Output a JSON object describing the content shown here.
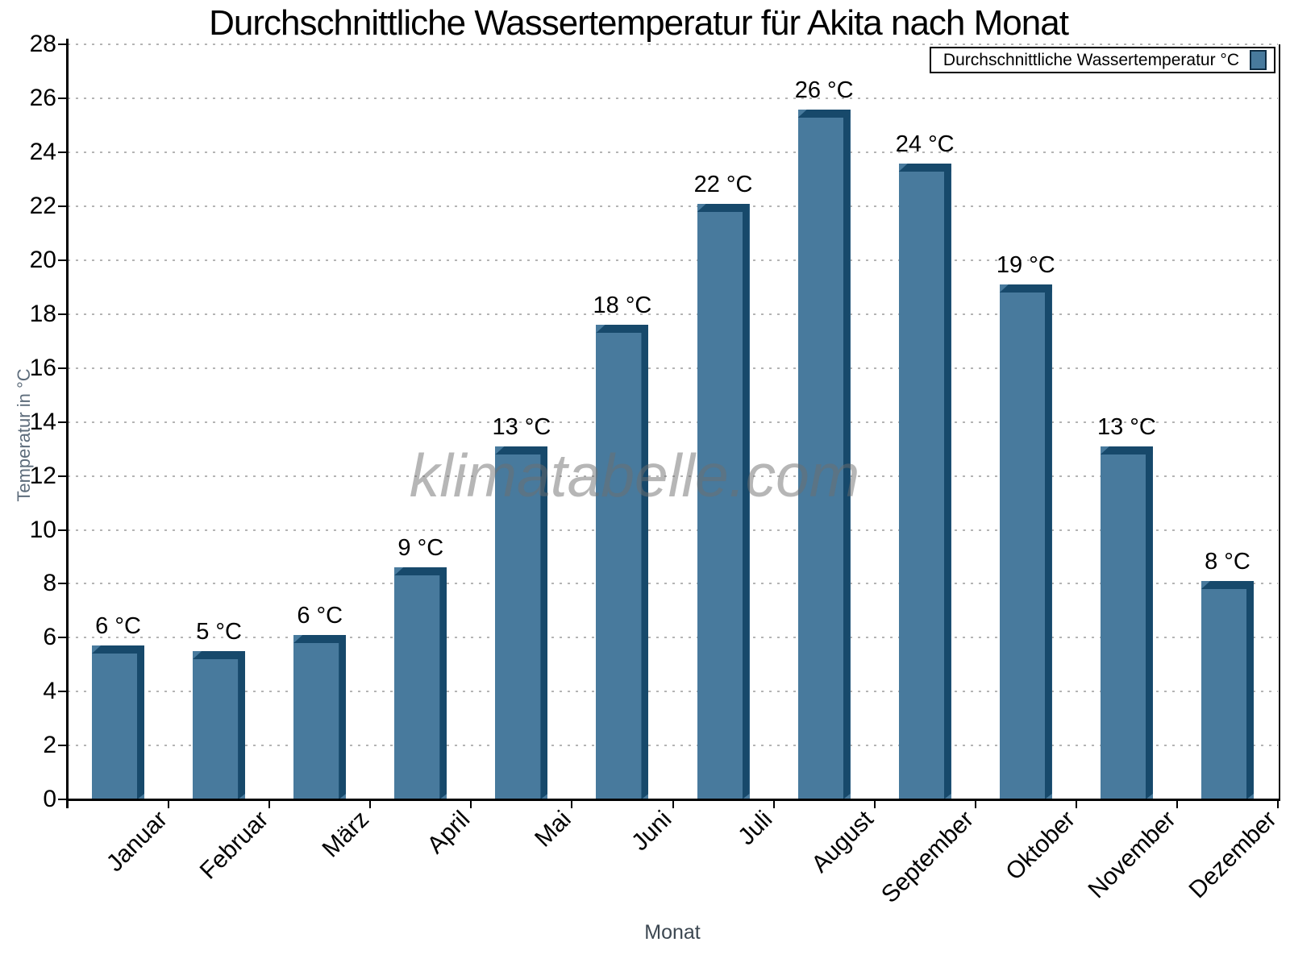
{
  "chart_data": {
    "type": "bar",
    "title": "Durchschnittliche Wassertemperatur für Akita nach Monat",
    "xlabel": "Monat",
    "ylabel": "Temperatur in °C",
    "series_name": "Durchschnittliche Wassertemperatur °C",
    "watermark": "klimatabelle.com",
    "categories": [
      "Januar",
      "Februar",
      "März",
      "April",
      "Mai",
      "Juni",
      "Juli",
      "August",
      "September",
      "Oktober",
      "November",
      "Dezember"
    ],
    "values": [
      6,
      5,
      6,
      9,
      13,
      18,
      22,
      26,
      24,
      19,
      13,
      8
    ],
    "value_labels": [
      "6 °C",
      "5 °C",
      "6 °C",
      "9 °C",
      "13 °C",
      "18 °C",
      "22 °C",
      "26 °C",
      "24 °C",
      "19 °C",
      "13 °C",
      "8 °C"
    ],
    "plotted_values": [
      5.7,
      5.5,
      6.1,
      8.6,
      13.1,
      17.6,
      22.1,
      25.6,
      23.6,
      19.1,
      13.1,
      8.1
    ],
    "ylim": [
      0,
      28
    ],
    "ytick_step": 2,
    "grid": "horizontal-dotted",
    "legend_position": "top-right",
    "colors": {
      "bar_face": "#487A9D",
      "bar_shadow": "#17496B",
      "grid_line": "#b4b4b4",
      "axis": "#000000",
      "ylabel_text": "#5D6C7B",
      "xlabel_text": "#3D4852",
      "watermark_text": "#ABABAB"
    }
  }
}
